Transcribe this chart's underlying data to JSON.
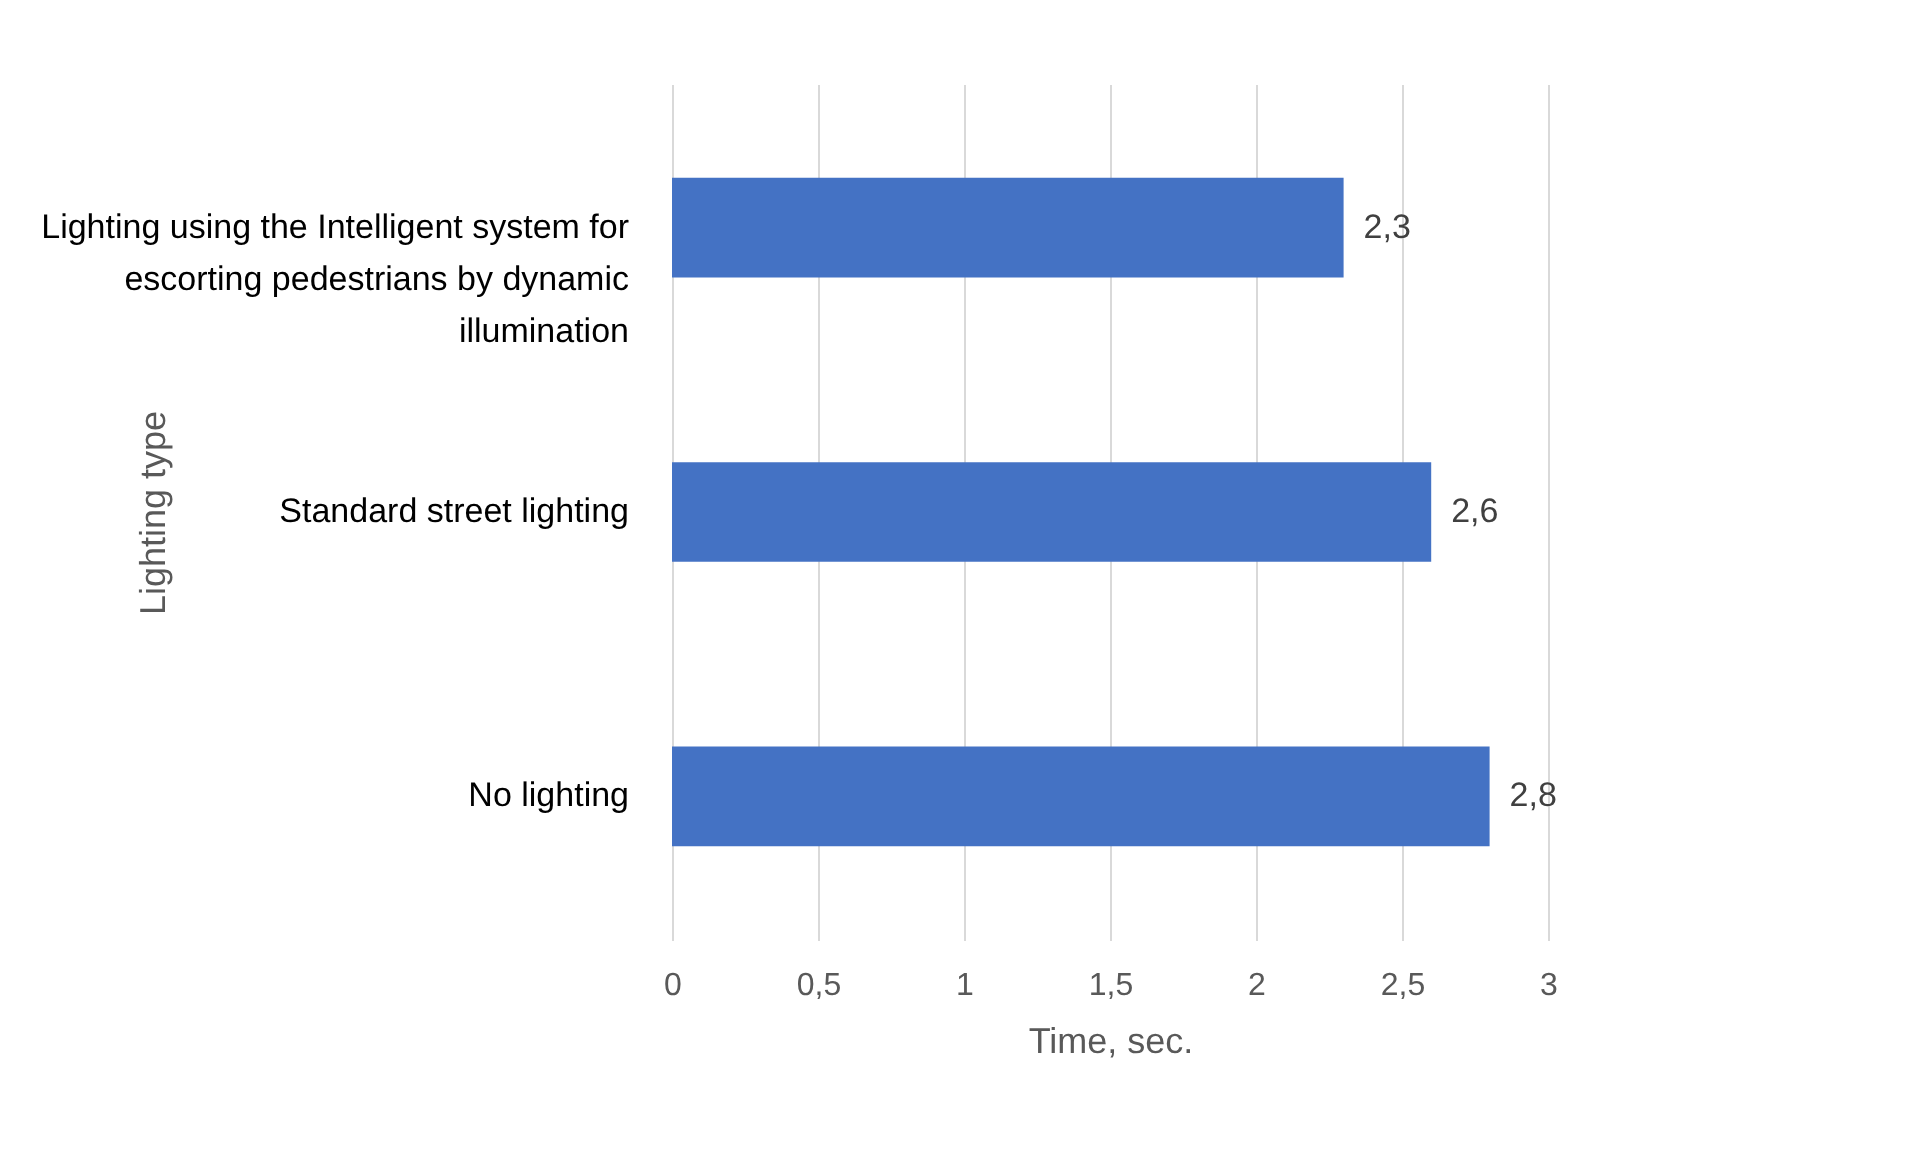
{
  "chart_data": {
    "type": "bar",
    "orientation": "horizontal",
    "xlabel": "Time, sec.",
    "ylabel": "Lighting type",
    "categories": [
      "Lighting using the Intelligent system for escorting pedestrians by dynamic illumination",
      "Standard street lighting",
      "No lighting"
    ],
    "values": [
      2.3,
      2.6,
      2.8
    ],
    "value_labels": [
      "2,3",
      "2,6",
      "2,8"
    ],
    "color": "#4472c4",
    "xlim": [
      0,
      3
    ],
    "xticks": [
      0,
      {
        "value": 0.5,
        "label": "0,5"
      },
      1,
      {
        "value": 1.5,
        "label": "1,5"
      },
      2,
      {
        "value": 2.5,
        "label": "2,5"
      },
      3
    ],
    "grid": "x"
  }
}
